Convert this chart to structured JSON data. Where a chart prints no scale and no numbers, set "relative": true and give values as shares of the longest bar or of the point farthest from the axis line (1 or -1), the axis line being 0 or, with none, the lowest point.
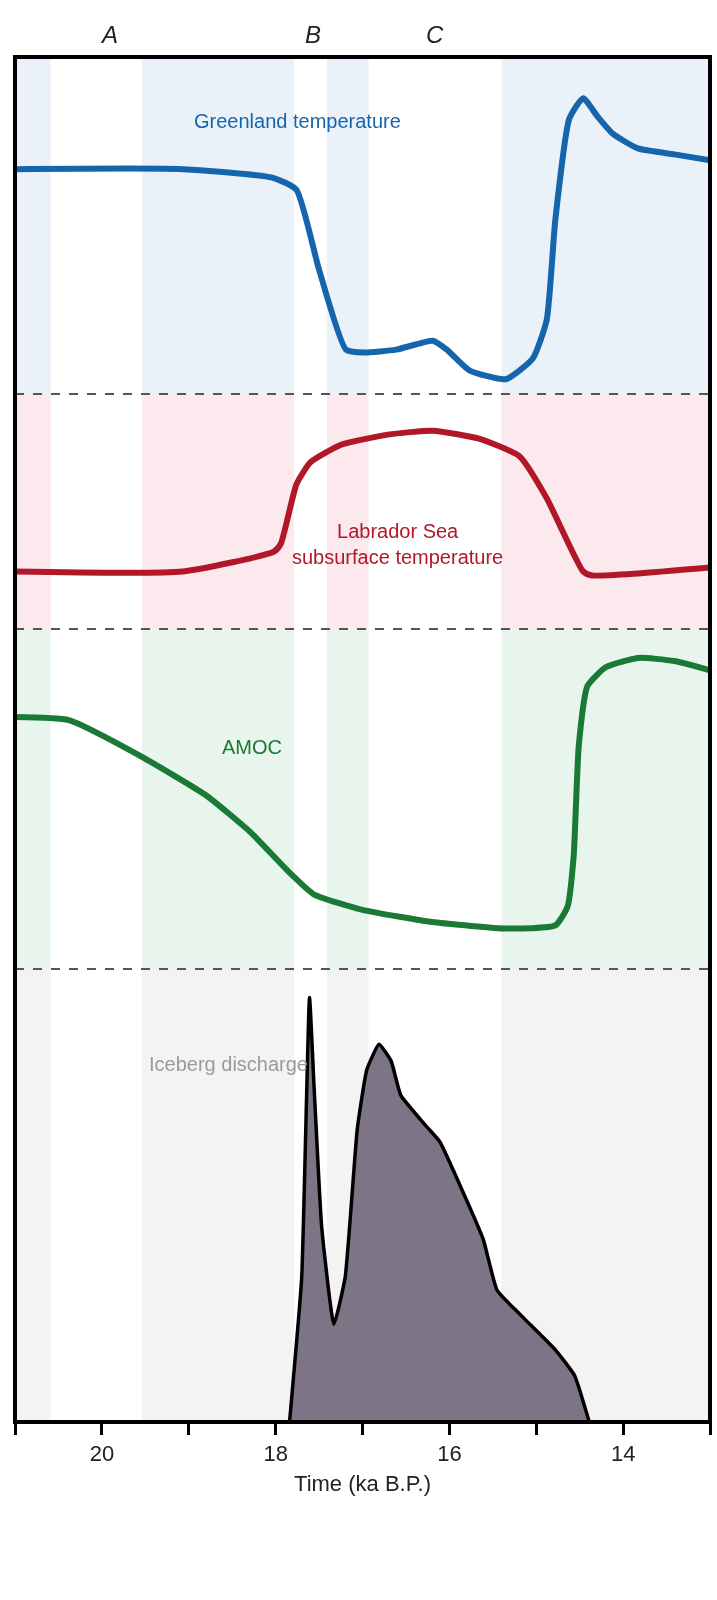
{
  "chart_data": [
    {
      "type": "line",
      "relative": true,
      "xlim": [
        21,
        13
      ],
      "tick_labels": false,
      "x": [
        21.0,
        19.07,
        18.02,
        17.76,
        17.5,
        17.19,
        16.98,
        16.61,
        16.19,
        16.03,
        15.77,
        15.35,
        15.04,
        14.88,
        14.78,
        14.62,
        14.46,
        14.3,
        14.12,
        13.83,
        13.41,
        13.0
      ],
      "series": [
        {
          "name": "Greenland temperature",
          "color": "#1565ad",
          "values": [
            0.76,
            0.76,
            0.73,
            0.69,
            0.42,
            0.15,
            0.14,
            0.15,
            0.18,
            0.15,
            0.08,
            0.05,
            0.12,
            0.25,
            0.59,
            0.93,
            1,
            0.94,
            0.88,
            0.83,
            0.81,
            0.79
          ]
        }
      ],
      "bands": [
        {
          "axis": "x",
          "from": 21,
          "to": 20.59,
          "color": "#eaf1f9"
        },
        {
          "axis": "x",
          "from": 19.54,
          "to": 17.79,
          "color": "#eaf1f9"
        },
        {
          "axis": "x",
          "from": 17.41,
          "to": 16.93,
          "color": "#eaf1f9"
        },
        {
          "axis": "x",
          "from": 15.4,
          "to": 13,
          "color": "#eaf1f9"
        }
      ],
      "annotations": [
        "A",
        "B",
        "C"
      ]
    },
    {
      "type": "line",
      "relative": true,
      "xlim": [
        21,
        13
      ],
      "tick_labels": false,
      "x": [
        21.0,
        19.07,
        18.02,
        17.94,
        17.76,
        17.6,
        17.24,
        16.71,
        16.19,
        15.66,
        15.19,
        14.88,
        14.46,
        14.36,
        13.83,
        13.0
      ],
      "series": [
        {
          "name": "Labrador Sea\nsubsurface temperature",
          "color": "#b0182a",
          "values": [
            0.29,
            0.29,
            0.39,
            0.43,
            0.73,
            0.84,
            0.93,
            0.98,
            1,
            0.96,
            0.87,
            0.66,
            0.29,
            0.27,
            0.28,
            0.31
          ]
        }
      ],
      "bands": [
        {
          "axis": "x",
          "from": 21,
          "to": 20.59,
          "color": "#fbe9ee"
        },
        {
          "axis": "x",
          "from": 19.54,
          "to": 17.79,
          "color": "#fbe9ee"
        },
        {
          "axis": "x",
          "from": 17.41,
          "to": 16.93,
          "color": "#fbe9ee"
        },
        {
          "axis": "x",
          "from": 15.4,
          "to": 13,
          "color": "#fbe9ee"
        }
      ]
    },
    {
      "type": "line",
      "relative": true,
      "xlim": [
        21,
        13
      ],
      "tick_labels": false,
      "x": [
        21.0,
        20.38,
        19.59,
        18.81,
        18.29,
        17.84,
        17.56,
        17.0,
        16.17,
        15.34,
        14.78,
        14.64,
        14.57,
        14.51,
        14.41,
        14.2,
        13.83,
        13.41,
        13.0
      ],
      "series": [
        {
          "name": "AMOC",
          "color": "#1a7a35",
          "values": [
            0.81,
            0.8,
            0.69,
            0.56,
            0.44,
            0.31,
            0.24,
            0.19,
            0.15,
            0.13,
            0.14,
            0.2,
            0.36,
            0.72,
            0.91,
            0.97,
            1,
            0.99,
            0.96
          ]
        }
      ],
      "bands": [
        {
          "axis": "x",
          "from": 21,
          "to": 20.59,
          "color": "#e8f5ec"
        },
        {
          "axis": "x",
          "from": 19.54,
          "to": 17.79,
          "color": "#e8f5ec"
        },
        {
          "axis": "x",
          "from": 17.41,
          "to": 16.93,
          "color": "#e8f5ec"
        },
        {
          "axis": "x",
          "from": 15.4,
          "to": 13,
          "color": "#e8f5ec"
        }
      ]
    },
    {
      "type": "area",
      "relative": true,
      "xlim": [
        21,
        13
      ],
      "tick_labels": "x",
      "xlabel": "Time (ka B.P.)",
      "xticks": [
        {
          "value": 21,
          "label": null
        },
        20,
        {
          "value": 19,
          "label": null
        },
        18,
        {
          "value": 17,
          "label": null
        },
        16,
        {
          "value": 15,
          "label": null
        },
        14,
        {
          "value": 13,
          "label": null
        }
      ],
      "x": [
        17.84,
        17.7,
        17.61,
        17.56,
        17.47,
        17.33,
        17.2,
        17.06,
        16.95,
        16.81,
        16.67,
        16.56,
        16.28,
        16.11,
        15.84,
        15.61,
        15.45,
        15.17,
        14.78,
        14.56,
        14.39
      ],
      "series": [
        {
          "name": "Iceberg discharge",
          "color": "#7d7585",
          "values": [
            0,
            0.34,
            1,
            0.8,
            0.46,
            0.23,
            0.34,
            0.69,
            0.83,
            0.89,
            0.85,
            0.77,
            0.7,
            0.66,
            0.54,
            0.43,
            0.31,
            0.25,
            0.17,
            0.11,
            0
          ]
        }
      ],
      "bands": [
        {
          "axis": "x",
          "from": 21,
          "to": 20.59,
          "color": "#f3f3f3"
        },
        {
          "axis": "x",
          "from": 19.54,
          "to": 17.79,
          "color": "#f3f3f3"
        },
        {
          "axis": "x",
          "from": 17.41,
          "to": 16.93,
          "color": "#f3f3f3"
        },
        {
          "axis": "x",
          "from": 15.4,
          "to": 13,
          "color": "#f3f3f3"
        }
      ]
    }
  ]
}
